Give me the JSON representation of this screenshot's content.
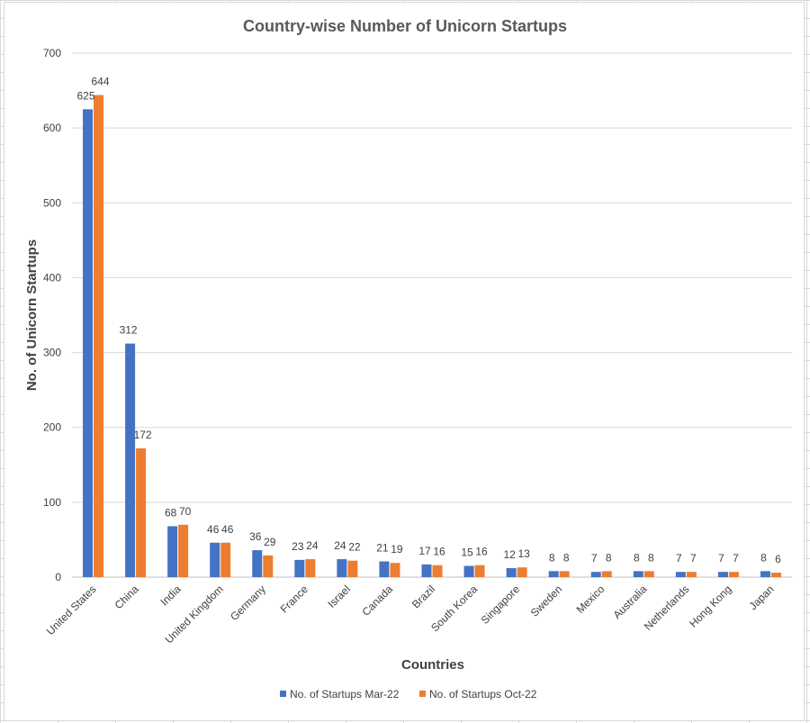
{
  "chart_data": {
    "type": "bar",
    "title": "Country-wise Number of Unicorn Startups",
    "xlabel": "Countries",
    "ylabel": "No. of Unicorn Startups",
    "ylim": [
      0,
      700
    ],
    "yticks": [
      "0",
      "100",
      "200",
      "300",
      "400",
      "500",
      "600",
      "700"
    ],
    "grid": true,
    "legend_position": "bottom",
    "categories": [
      "United States",
      "China",
      "India",
      "United Kingdom",
      "Germany",
      "France",
      "Israel",
      "Canada",
      "Brazil",
      "South Korea",
      "Singapore",
      "Sweden",
      "Mexico",
      "Australia",
      "Netherlands",
      "Hong Kong",
      "Japan"
    ],
    "series": [
      {
        "name": "No. of Startups Mar-22",
        "color": "#4472c4",
        "values": [
          625,
          312,
          68,
          46,
          36,
          23,
          24,
          21,
          17,
          15,
          12,
          8,
          7,
          8,
          7,
          7,
          8
        ]
      },
      {
        "name": "No. of Startups Oct-22",
        "color": "#ed7d31",
        "values": [
          644,
          172,
          70,
          46,
          29,
          24,
          22,
          19,
          16,
          16,
          13,
          8,
          8,
          8,
          7,
          7,
          6
        ]
      }
    ]
  }
}
